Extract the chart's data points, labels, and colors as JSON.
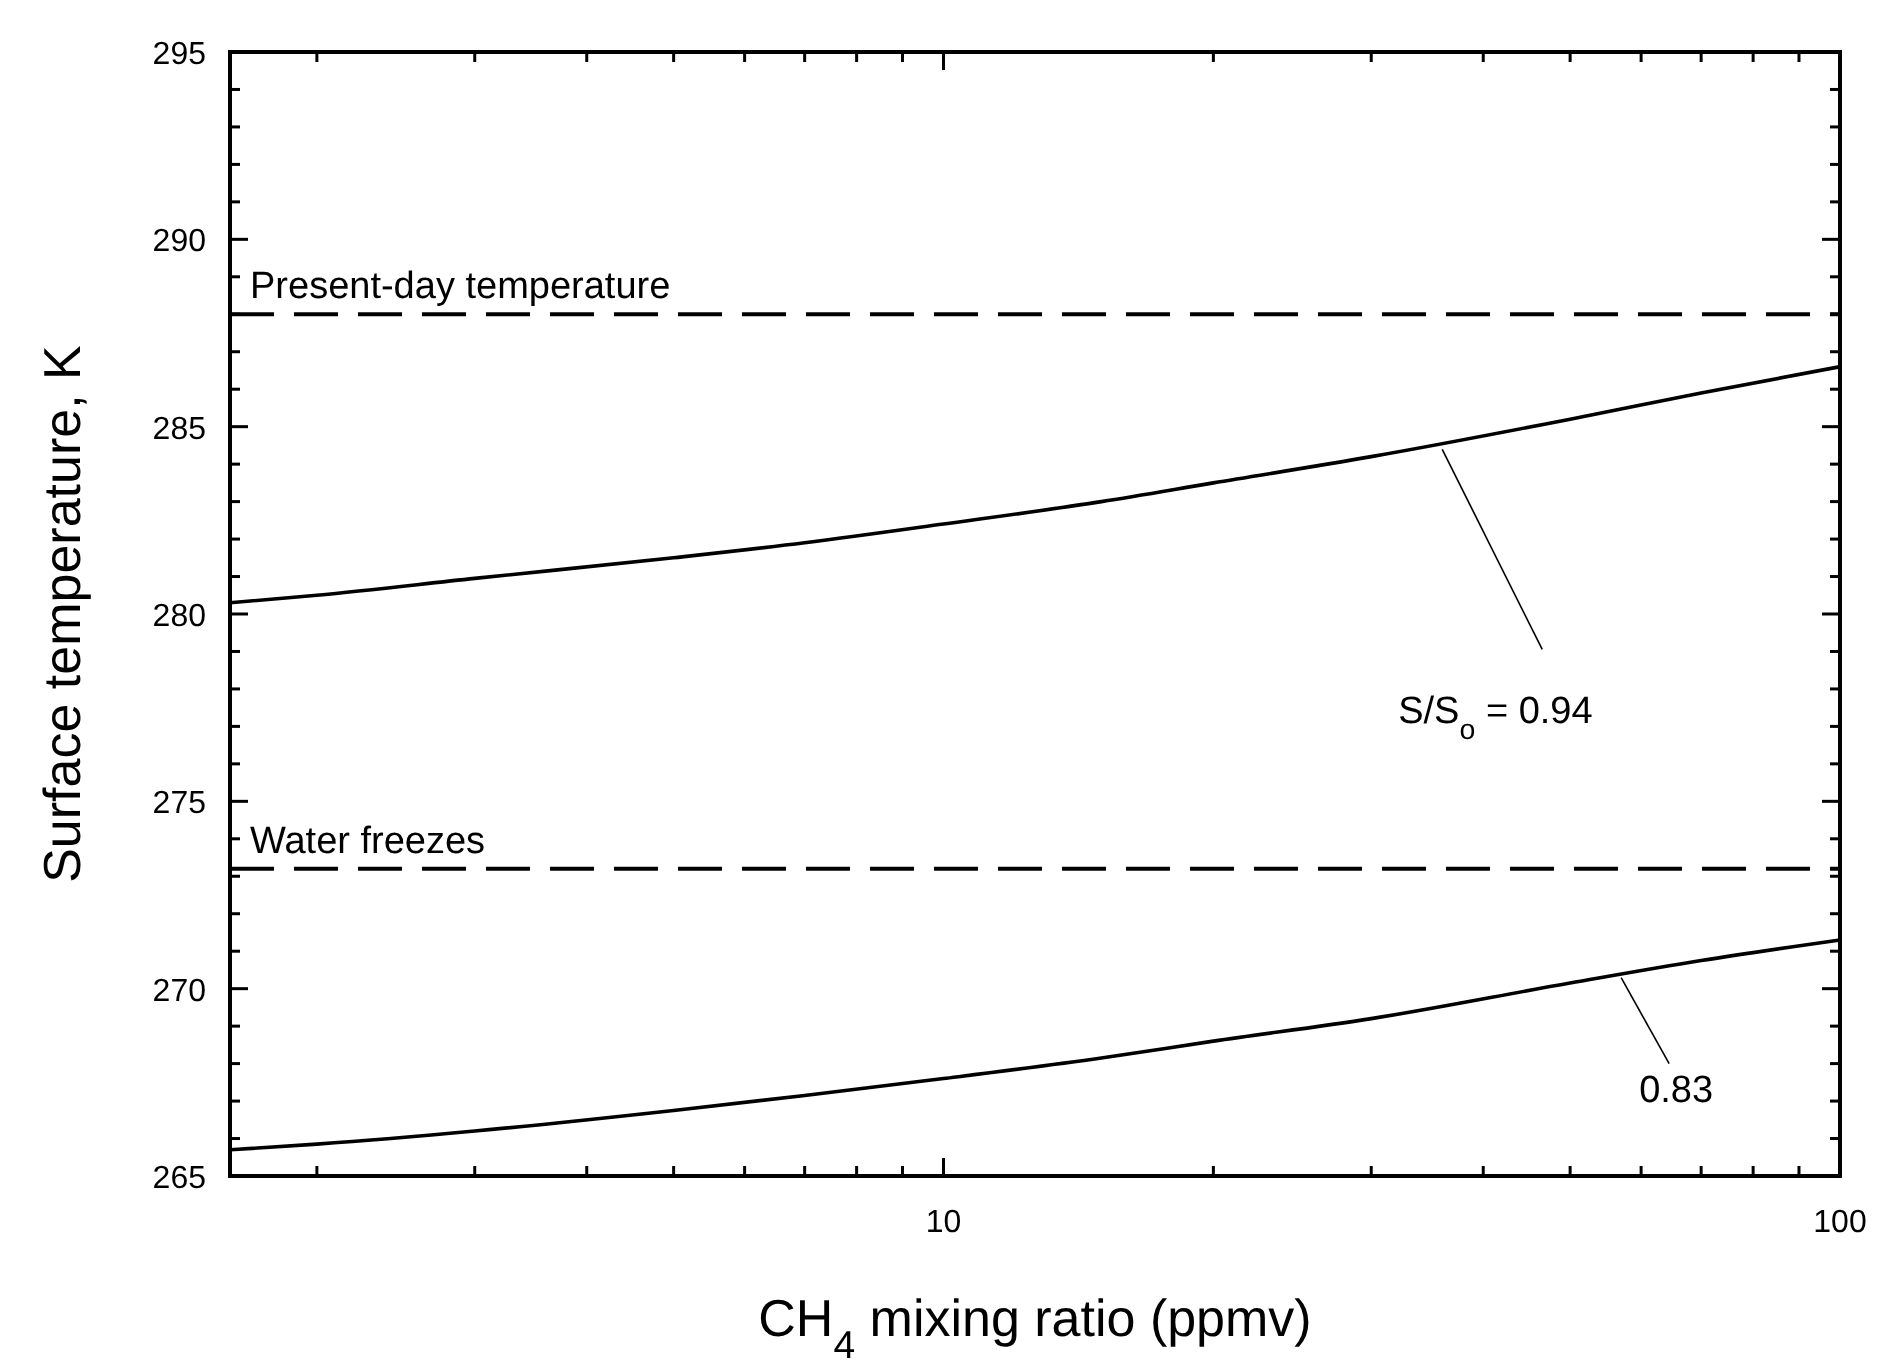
{
  "chart_data": {
    "type": "line",
    "xlabel": "CH$_{4}$ mixing ratio (ppmv)",
    "ylabel": "Surface temperature, K",
    "log": "x",
    "xlim": [
      1.6,
      100
    ],
    "ylim": [
      265,
      295
    ],
    "xticks": [
      {
        "value": 2,
        "label": null
      },
      {
        "value": 3,
        "label": null
      },
      {
        "value": 4,
        "label": null
      },
      {
        "value": 5,
        "label": null
      },
      {
        "value": 6,
        "label": null
      },
      {
        "value": 7,
        "label": null
      },
      {
        "value": 8,
        "label": null
      },
      {
        "value": 9,
        "label": null
      },
      10,
      {
        "value": 20,
        "label": null
      },
      {
        "value": 30,
        "label": null
      },
      {
        "value": 40,
        "label": null
      },
      {
        "value": 50,
        "label": null
      },
      {
        "value": 60,
        "label": null
      },
      {
        "value": 70,
        "label": null
      },
      {
        "value": 80,
        "label": null
      },
      {
        "value": 90,
        "label": null
      },
      100
    ],
    "yticks": [
      265,
      {
        "value": 266,
        "label": null
      },
      {
        "value": 267,
        "label": null
      },
      {
        "value": 268,
        "label": null
      },
      {
        "value": 269,
        "label": null
      },
      270,
      {
        "value": 271,
        "label": null
      },
      {
        "value": 272,
        "label": null
      },
      {
        "value": 273,
        "label": null
      },
      {
        "value": 274,
        "label": null
      },
      275,
      {
        "value": 276,
        "label": null
      },
      {
        "value": 277,
        "label": null
      },
      {
        "value": 278,
        "label": null
      },
      {
        "value": 279,
        "label": null
      },
      280,
      {
        "value": 281,
        "label": null
      },
      {
        "value": 282,
        "label": null
      },
      {
        "value": 283,
        "label": null
      },
      {
        "value": 284,
        "label": null
      },
      285,
      {
        "value": 286,
        "label": null
      },
      {
        "value": 287,
        "label": null
      },
      {
        "value": 288,
        "label": null
      },
      {
        "value": 289,
        "label": null
      },
      290,
      {
        "value": 291,
        "label": null
      },
      {
        "value": 292,
        "label": null
      },
      {
        "value": 293,
        "label": null
      },
      {
        "value": 294,
        "label": null
      },
      295
    ],
    "x": [
      1.6,
      2,
      3,
      5,
      7,
      10,
      15,
      20,
      30,
      50,
      70,
      100
    ],
    "series": [
      {
        "color": "#000000",
        "values": [
          280.3,
          280.5,
          280.95,
          281.5,
          281.9,
          282.4,
          283.0,
          283.5,
          284.2,
          285.2,
          285.9,
          286.6
        ]
      },
      {
        "color": "#000000",
        "values": [
          265.7,
          265.85,
          266.2,
          266.75,
          267.15,
          267.6,
          268.15,
          268.6,
          269.2,
          270.15,
          270.75,
          271.3
        ]
      }
    ],
    "ref_lines": [
      {
        "axis": "y",
        "value": 288,
        "label": "Present-day temperature",
        "color": "#000000",
        "line_style": "dashed"
      },
      {
        "axis": "y",
        "value": 273.2,
        "label": "Water freezes",
        "color": "#000000",
        "line_style": "dashed"
      }
    ],
    "annotations": [
      {
        "text": "S/S$_{o}$ = 0.94",
        "x": 36,
        "y": 284.5
      },
      {
        "text": "0.83",
        "x": 57,
        "y": 270.4
      }
    ],
    "grid": false,
    "marker": "none",
    "line_style": "solid"
  }
}
